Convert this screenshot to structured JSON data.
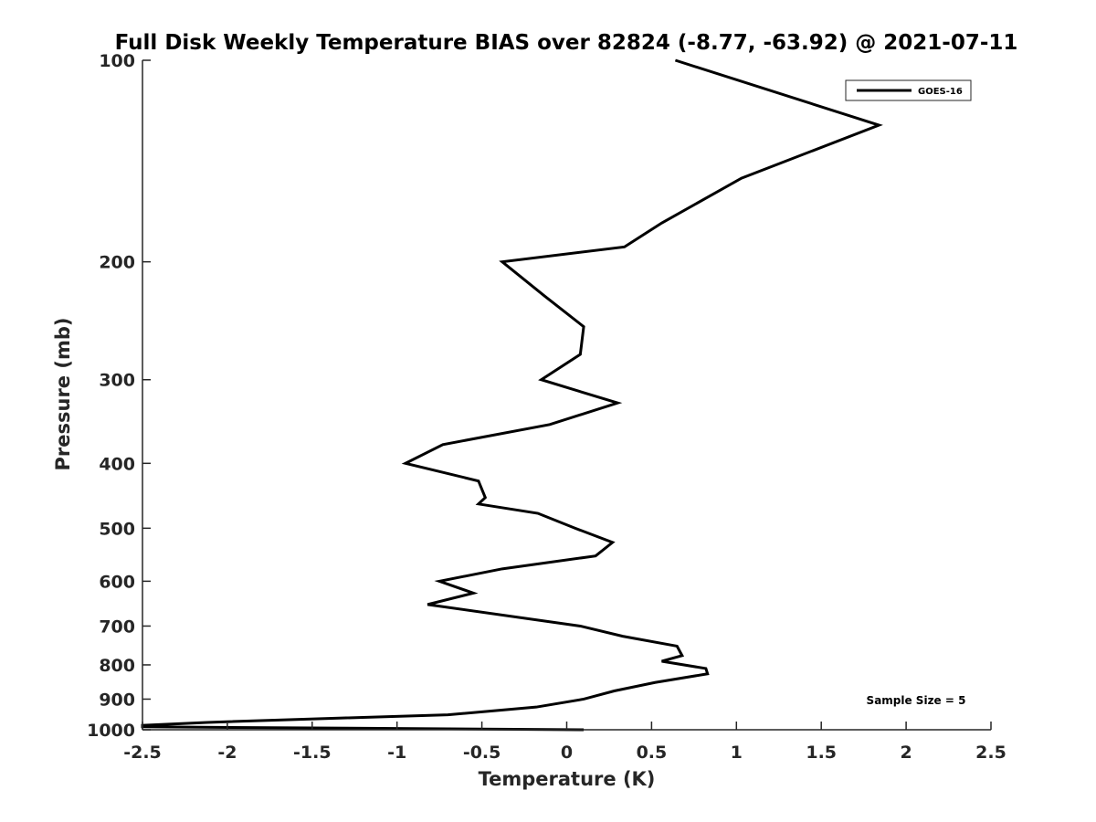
{
  "chart_data": {
    "type": "line",
    "title": "Full Disk Weekly Temperature BIAS over 82824 (-8.77, -63.92) @ 2021-07-11",
    "xlabel": "Temperature (K)",
    "ylabel": "Pressure (mb)",
    "xlim": [
      -2.5,
      2.5
    ],
    "ylim": [
      100,
      1000
    ],
    "y_scale": "log",
    "y_reversed": true,
    "grid": false,
    "legend_position": "top-right",
    "x_ticks": [
      -2.5,
      -2,
      -1.5,
      -1,
      -0.5,
      0,
      0.5,
      1,
      1.5,
      2,
      2.5
    ],
    "x_tick_labels": [
      "-2.5",
      "-2",
      "-1.5",
      "-1",
      "-0.5",
      "0",
      "0.5",
      "1",
      "1.5",
      "2",
      "2.5"
    ],
    "y_ticks": [
      100,
      200,
      300,
      400,
      500,
      600,
      700,
      800,
      900,
      1000
    ],
    "y_tick_labels": [
      "100",
      "200",
      "300",
      "400",
      "500",
      "600",
      "700",
      "800",
      "900",
      "1000"
    ],
    "annotation": "Sample Size = 5",
    "series": [
      {
        "name": "GOES-16",
        "color": "#000000",
        "points": [
          {
            "x": 0.64,
            "y": 100
          },
          {
            "x": 1.84,
            "y": 125
          },
          {
            "x": 1.03,
            "y": 150
          },
          {
            "x": 0.56,
            "y": 175
          },
          {
            "x": 0.34,
            "y": 190
          },
          {
            "x": -0.38,
            "y": 200
          },
          {
            "x": -0.13,
            "y": 225
          },
          {
            "x": 0.1,
            "y": 250
          },
          {
            "x": 0.08,
            "y": 275
          },
          {
            "x": -0.15,
            "y": 300
          },
          {
            "x": 0.3,
            "y": 325
          },
          {
            "x": -0.1,
            "y": 350
          },
          {
            "x": -0.73,
            "y": 375
          },
          {
            "x": -0.95,
            "y": 400
          },
          {
            "x": -0.52,
            "y": 425
          },
          {
            "x": -0.48,
            "y": 450
          },
          {
            "x": -0.52,
            "y": 460
          },
          {
            "x": -0.17,
            "y": 475
          },
          {
            "x": 0.05,
            "y": 500
          },
          {
            "x": 0.27,
            "y": 525
          },
          {
            "x": 0.17,
            "y": 550
          },
          {
            "x": -0.38,
            "y": 575
          },
          {
            "x": -0.75,
            "y": 600
          },
          {
            "x": -0.55,
            "y": 625
          },
          {
            "x": -0.82,
            "y": 650
          },
          {
            "x": 0.08,
            "y": 700
          },
          {
            "x": 0.33,
            "y": 725
          },
          {
            "x": 0.65,
            "y": 750
          },
          {
            "x": 0.68,
            "y": 775
          },
          {
            "x": 0.56,
            "y": 790
          },
          {
            "x": 0.82,
            "y": 810
          },
          {
            "x": 0.83,
            "y": 825
          },
          {
            "x": 0.52,
            "y": 850
          },
          {
            "x": 0.28,
            "y": 875
          },
          {
            "x": 0.1,
            "y": 900
          },
          {
            "x": -0.18,
            "y": 925
          },
          {
            "x": -0.7,
            "y": 950
          },
          {
            "x": -1.3,
            "y": 960
          },
          {
            "x": -2.12,
            "y": 975
          },
          {
            "x": -2.5,
            "y": 985
          },
          {
            "x": -2.5,
            "y": 990
          },
          {
            "x": 0.1,
            "y": 1000
          }
        ]
      }
    ]
  }
}
